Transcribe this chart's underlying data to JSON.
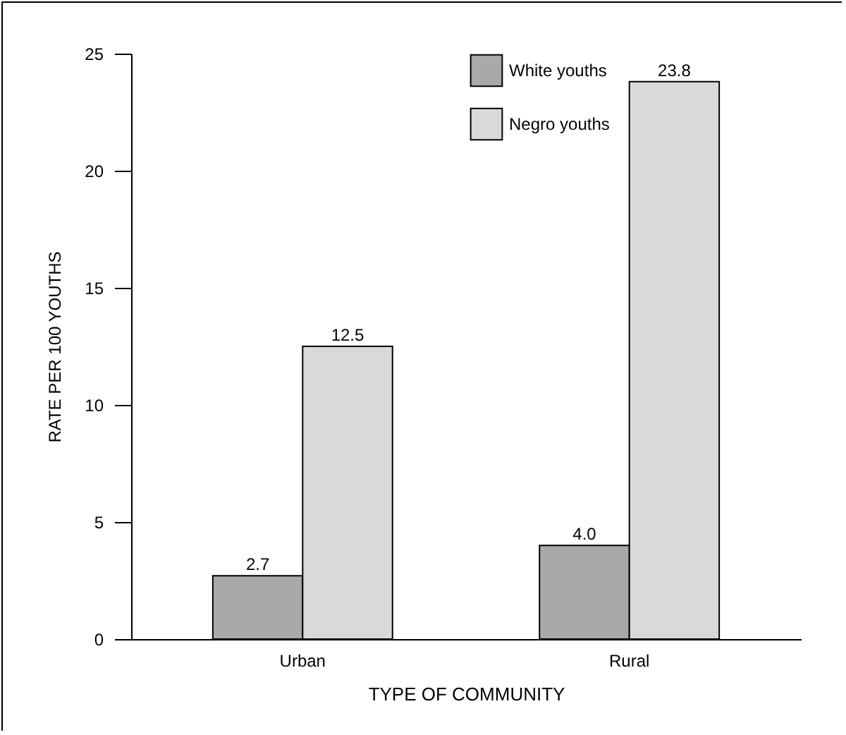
{
  "chart_data": {
    "type": "bar",
    "xlabel": "TYPE OF COMMUNITY",
    "ylabel": "RATE PER 100 YOUTHS",
    "categories": [
      "Urban",
      "Rural"
    ],
    "series": [
      {
        "name": "White youths",
        "color": "#a9a9a9",
        "values": [
          2.7,
          4.0
        ],
        "value_labels": [
          "2.7",
          "4.0"
        ]
      },
      {
        "name": "Negro youths",
        "color": "#d9d9d9",
        "values": [
          12.5,
          23.8
        ],
        "value_labels": [
          "12.5",
          "23.8"
        ]
      }
    ],
    "ylim": [
      0,
      25
    ],
    "yticks": [
      0,
      5,
      10,
      15,
      20,
      25
    ],
    "grid": false,
    "legend": "top right"
  }
}
